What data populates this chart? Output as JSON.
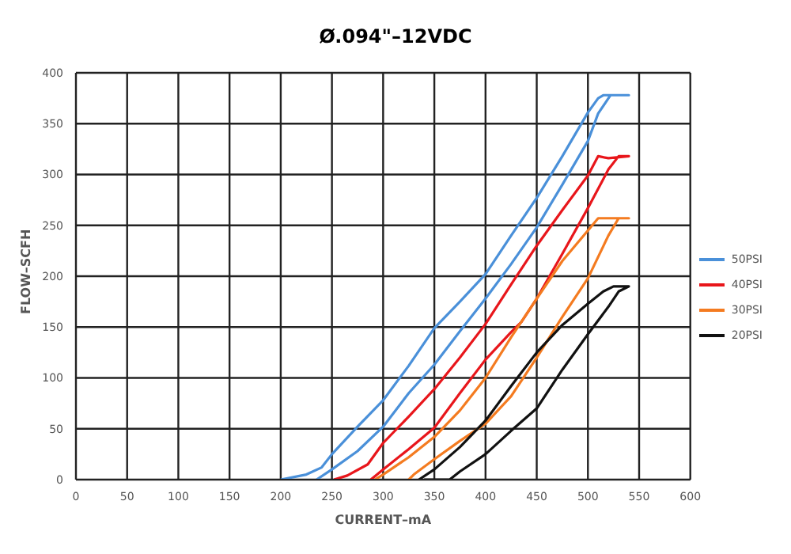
{
  "chart_data": {
    "type": "line",
    "title": "Ø.094\"–12VDC",
    "xlabel": "CURRENT–mA",
    "ylabel": "FLOW–SCFH",
    "xlim": [
      0,
      600
    ],
    "xticks": [
      0,
      50,
      100,
      150,
      200,
      250,
      300,
      350,
      400,
      450,
      500,
      550,
      600
    ],
    "ylim": [
      0,
      400
    ],
    "yticks": [
      0,
      50,
      100,
      150,
      200,
      250,
      300,
      350,
      400
    ],
    "grid": true,
    "legend": "right",
    "series": [
      {
        "name": "50PSI",
        "color": "#4a90d9",
        "x": [
          200,
          225,
          240,
          250,
          275,
          300,
          325,
          350,
          375,
          400,
          425,
          450,
          475,
          500,
          510,
          515,
          540,
          522,
          510,
          500,
          475,
          450,
          425,
          400,
          375,
          350,
          325,
          300,
          275,
          250,
          235
        ],
        "values": [
          0,
          5,
          12,
          25,
          52,
          78,
          112,
          149,
          175,
          202,
          240,
          277,
          318,
          361,
          375,
          378,
          378,
          378,
          360,
          333,
          290,
          248,
          212,
          178,
          146,
          113,
          85,
          52,
          28,
          10,
          0
        ]
      },
      {
        "name": "40PSI",
        "color": "#e8161b",
        "x": [
          252,
          265,
          285,
          300,
          325,
          350,
          375,
          400,
          425,
          450,
          475,
          500,
          510,
          520,
          540,
          530,
          520,
          500,
          475,
          450,
          435,
          425,
          400,
          375,
          350,
          325,
          300,
          288
        ],
        "values": [
          0,
          4,
          15,
          36,
          62,
          89,
          120,
          153,
          192,
          230,
          265,
          299,
          318,
          316,
          318,
          318,
          305,
          267,
          222,
          178,
          155,
          145,
          118,
          85,
          51,
          30,
          10,
          0
        ]
      },
      {
        "name": "30PSI",
        "color": "#f47b20",
        "x": [
          292,
          300,
          325,
          350,
          375,
          400,
          425,
          450,
          475,
          500,
          510,
          540,
          530,
          520,
          500,
          475,
          450,
          425,
          400,
          375,
          350,
          330,
          325
        ],
        "values": [
          0,
          5,
          22,
          42,
          68,
          100,
          140,
          178,
          215,
          245,
          257,
          257,
          257,
          240,
          198,
          160,
          120,
          82,
          55,
          38,
          20,
          5,
          0
        ]
      },
      {
        "name": "20PSI",
        "color": "#111111",
        "x": [
          335,
          350,
          375,
          400,
          425,
          450,
          475,
          500,
          515,
          525,
          540,
          530,
          520,
          500,
          475,
          450,
          425,
          400,
          375,
          365,
          340
        ],
        "values": [
          0,
          10,
          32,
          58,
          92,
          125,
          152,
          173,
          185,
          190,
          190,
          185,
          170,
          143,
          108,
          70,
          48,
          25,
          8,
          0,
          0
        ]
      }
    ]
  }
}
